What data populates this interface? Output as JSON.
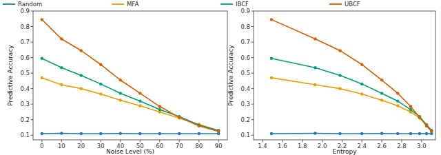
{
  "chart_data": [
    {
      "type": "line",
      "x_label": "Noise Level (%)",
      "y_label": "Predictive Accuracy",
      "x": [
        0,
        10,
        20,
        30,
        40,
        50,
        60,
        70,
        80,
        90
      ],
      "xlim": [
        -4.5,
        94.5
      ],
      "xticks": [
        0,
        10,
        20,
        30,
        40,
        50,
        60,
        70,
        80,
        90
      ],
      "ylim": [
        0.07,
        0.9
      ],
      "yticks": [
        0.1,
        0.2,
        0.3,
        0.4,
        0.5,
        0.6,
        0.7,
        0.8,
        0.9
      ],
      "grid": false,
      "legend": "top",
      "marker": "o",
      "series": [
        {
          "name": "Random",
          "color": "#1f77b4",
          "values": [
            0.11,
            0.112,
            0.11,
            0.11,
            0.111,
            0.11,
            0.11,
            0.11,
            0.11,
            0.11
          ]
        },
        {
          "name": "MFA",
          "color": "#e69f00",
          "values": [
            0.47,
            0.425,
            0.4,
            0.365,
            0.325,
            0.29,
            0.25,
            0.21,
            0.17,
            0.13
          ]
        },
        {
          "name": "IBCF",
          "color": "#009e73",
          "values": [
            0.595,
            0.535,
            0.485,
            0.43,
            0.37,
            0.32,
            0.265,
            0.22,
            0.165,
            0.13
          ]
        },
        {
          "name": "UBCF",
          "color": "#d55e00",
          "values": [
            0.845,
            0.72,
            0.645,
            0.555,
            0.455,
            0.37,
            0.285,
            0.215,
            0.16,
            0.125
          ]
        }
      ]
    },
    {
      "type": "line",
      "x_label": "Entropy",
      "y_label": "Predictive Accuracy",
      "x": [
        1.49,
        1.93,
        2.18,
        2.4,
        2.6,
        2.76,
        2.89,
        2.98,
        3.05,
        3.1
      ],
      "xlim": [
        1.31,
        3.14
      ],
      "xticks": [
        1.4,
        1.6,
        1.8,
        {
          "value": 2,
          "label": "2.0"
        },
        2.2,
        2.4,
        2.6,
        2.8,
        {
          "value": 3,
          "label": "3.0"
        }
      ],
      "ylim": [
        0.07,
        0.9
      ],
      "yticks": [
        0.1,
        0.2,
        0.3,
        0.4,
        0.5,
        0.6,
        0.7,
        0.8,
        0.9
      ],
      "grid": false,
      "marker": "o",
      "series": [
        {
          "color": "#1f77b4",
          "values": [
            0.11,
            0.112,
            0.11,
            0.11,
            0.111,
            0.11,
            0.11,
            0.11,
            0.11,
            0.11
          ]
        },
        {
          "color": "#e69f00",
          "values": [
            0.47,
            0.425,
            0.4,
            0.365,
            0.325,
            0.29,
            0.25,
            0.21,
            0.17,
            0.13
          ]
        },
        {
          "color": "#009e73",
          "values": [
            0.595,
            0.535,
            0.485,
            0.43,
            0.37,
            0.32,
            0.265,
            0.22,
            0.165,
            0.13
          ]
        },
        {
          "color": "#d55e00",
          "values": [
            0.845,
            0.72,
            0.645,
            0.555,
            0.455,
            0.37,
            0.285,
            0.215,
            0.16,
            0.125
          ]
        }
      ]
    }
  ]
}
